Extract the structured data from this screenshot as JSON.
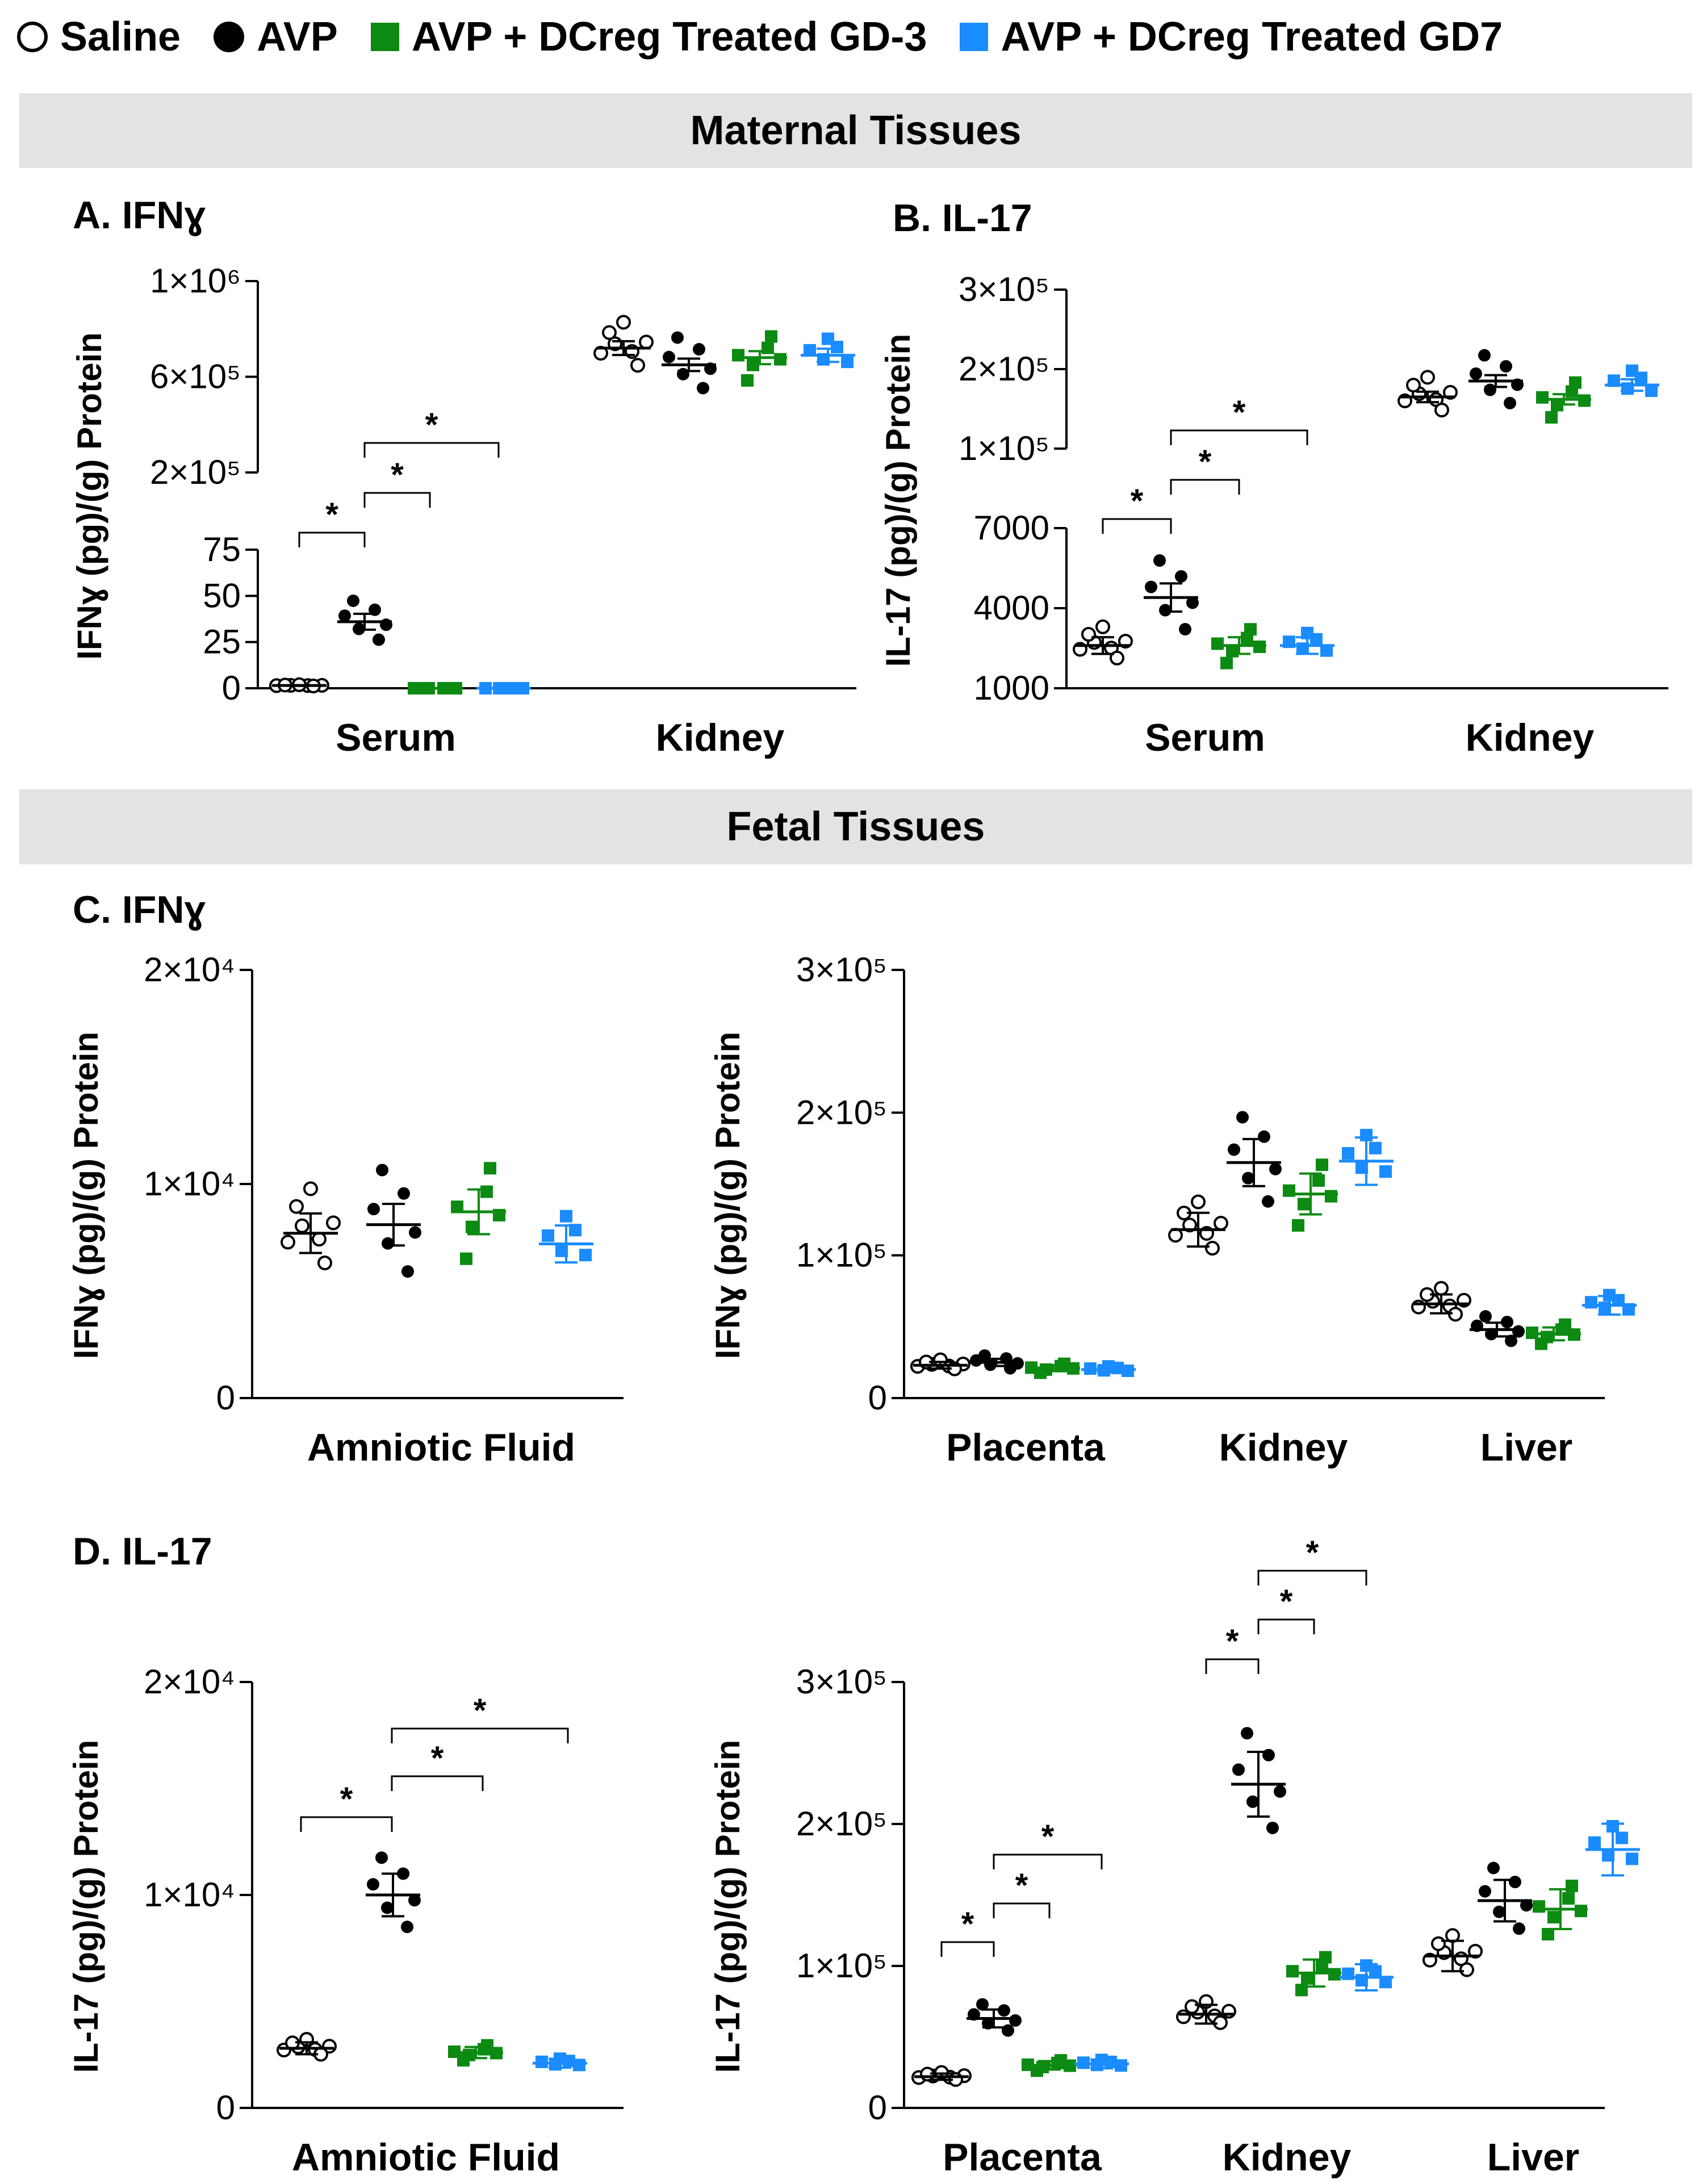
{
  "legend": {
    "items": [
      {
        "label": "Saline",
        "marker": "open-circle-icon"
      },
      {
        "label": "AVP",
        "marker": "filled-circle-icon"
      },
      {
        "label": "AVP + DCreg Treated GD-3",
        "marker": "green-square-icon"
      },
      {
        "label": "AVP + DCreg Treated GD7",
        "marker": "blue-square-icon"
      }
    ]
  },
  "sections": {
    "maternal": "Maternal Tissues",
    "fetal": "Fetal Tissues"
  },
  "colors": {
    "saline": "#000000",
    "avp": "#000000",
    "gd3": "#0c8a12",
    "gd7": "#1a8cff",
    "banner": "#e3e3e3"
  },
  "chart_data": [
    {
      "id": "A",
      "panel_label": "A. IFNɣ",
      "type": "scatter",
      "axis_break": true,
      "ylabel": "IFNɣ (pg)/(g) Protein",
      "categories": [
        "Serum",
        "Kidney"
      ],
      "y_ticks_lower": [
        "0",
        "25",
        "50",
        "75"
      ],
      "y_ticks_upper": [
        "2×10⁵",
        "6×10⁵",
        "1×10⁶"
      ],
      "ylim_lower": [
        0,
        75
      ],
      "ylim_upper": [
        200000,
        1000000
      ],
      "series": [
        {
          "name": "Saline",
          "values": [
            1.5,
            720000
          ]
        },
        {
          "name": "AVP",
          "values": [
            36,
            650000
          ]
        },
        {
          "name": "AVP + DCreg Treated GD-3",
          "values": [
            0,
            680000
          ]
        },
        {
          "name": "AVP + DCreg Treated GD7",
          "values": [
            0,
            690000
          ]
        }
      ],
      "significance": [
        "*",
        "*",
        "*"
      ]
    },
    {
      "id": "B",
      "panel_label": "B. IL-17",
      "type": "scatter",
      "axis_break": true,
      "ylabel": "IL-17 (pg)/(g) Protein",
      "categories": [
        "Serum",
        "Kidney"
      ],
      "y_ticks_lower": [
        "1000",
        "4000",
        "7000"
      ],
      "y_ticks_upper": [
        "1×10⁵",
        "2×10⁵",
        "3×10⁵"
      ],
      "ylim_lower": [
        1000,
        7000
      ],
      "ylim_upper": [
        100000,
        300000
      ],
      "series": [
        {
          "name": "Saline",
          "values": [
            2600,
            165000
          ]
        },
        {
          "name": "AVP",
          "values": [
            4400,
            185000
          ]
        },
        {
          "name": "AVP + DCreg Treated GD-3",
          "values": [
            2600,
            162000
          ]
        },
        {
          "name": "AVP + DCreg Treated GD7",
          "values": [
            2600,
            180000
          ]
        }
      ],
      "significance": [
        "*",
        "*",
        "*"
      ]
    },
    {
      "id": "C1",
      "panel_label": "C. IFNɣ",
      "type": "scatter",
      "ylabel": "IFNɣ (pg)/(g) Protein",
      "categories": [
        "Amniotic Fluid"
      ],
      "y_ticks": [
        "0",
        "1×10⁴",
        "2×10⁴"
      ],
      "ylim": [
        0,
        20000
      ],
      "series": [
        {
          "name": "Saline",
          "values": [
            7700
          ]
        },
        {
          "name": "AVP",
          "values": [
            8100
          ]
        },
        {
          "name": "AVP + DCreg Treated GD-3",
          "values": [
            8700
          ]
        },
        {
          "name": "AVP + DCreg Treated GD7",
          "values": [
            7200
          ]
        }
      ],
      "significance": []
    },
    {
      "id": "C2",
      "type": "scatter",
      "ylabel": "IFNɣ (pg)/(g) Protein",
      "categories": [
        "Placenta",
        "Kidney",
        "Liver"
      ],
      "y_ticks": [
        "0",
        "1×10⁵",
        "2×10⁵",
        "3×10⁵"
      ],
      "ylim": [
        0,
        300000
      ],
      "series": [
        {
          "name": "Saline",
          "values": [
            23000,
            118000,
            66000
          ]
        },
        {
          "name": "AVP",
          "values": [
            25000,
            165000,
            48000
          ]
        },
        {
          "name": "AVP + DCreg Treated GD-3",
          "values": [
            21000,
            143000,
            45000
          ]
        },
        {
          "name": "AVP + DCreg Treated GD7",
          "values": [
            20000,
            166000,
            65000
          ]
        }
      ],
      "significance": []
    },
    {
      "id": "D1",
      "panel_label": "D. IL-17",
      "type": "scatter",
      "ylabel": "IL-17 (pg)/(g) Protein",
      "categories": [
        "Amniotic Fluid"
      ],
      "y_ticks": [
        "0",
        "1×10⁴",
        "2×10⁴"
      ],
      "ylim": [
        0,
        20000
      ],
      "series": [
        {
          "name": "Saline",
          "values": [
            2800
          ]
        },
        {
          "name": "AVP",
          "values": [
            10000
          ]
        },
        {
          "name": "AVP + DCreg Treated GD-3",
          "values": [
            2600
          ]
        },
        {
          "name": "AVP + DCreg Treated GD7",
          "values": [
            2100
          ]
        }
      ],
      "significance": [
        "*",
        "*",
        "*"
      ]
    },
    {
      "id": "D2",
      "type": "scatter",
      "ylabel": "IL-17 (pg)/(g) Protein",
      "categories": [
        "Placenta",
        "Kidney",
        "Liver"
      ],
      "y_ticks": [
        "0",
        "1×10⁵",
        "2×10⁵",
        "3×10⁵"
      ],
      "ylim": [
        0,
        300000
      ],
      "series": [
        {
          "name": "Saline",
          "values": [
            22000,
            66000,
            107000
          ]
        },
        {
          "name": "AVP",
          "values": [
            63000,
            228000,
            146000
          ]
        },
        {
          "name": "AVP + DCreg Treated GD-3",
          "values": [
            30000,
            95000,
            140000
          ]
        },
        {
          "name": "AVP + DCreg Treated GD7",
          "values": [
            31000,
            92000,
            182000
          ]
        }
      ],
      "significance": [
        "*",
        "*",
        "*",
        "*",
        "*",
        "*"
      ]
    }
  ]
}
